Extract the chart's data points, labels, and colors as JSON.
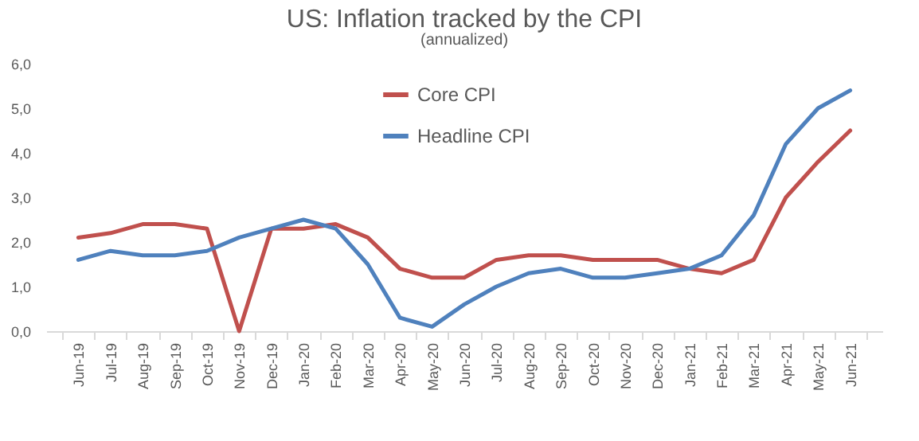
{
  "chart_data": {
    "type": "line",
    "title": "US: Inflation tracked by the CPI",
    "subtitle": "(annualized)",
    "categories": [
      "Jun-19",
      "Jul-19",
      "Aug-19",
      "Sep-19",
      "Oct-19",
      "Nov-19",
      "Dec-19",
      "Jan-20",
      "Feb-20",
      "Mar-20",
      "Apr-20",
      "May-20",
      "Jun-20",
      "Jul-20",
      "Aug-20",
      "Sep-20",
      "Oct-20",
      "Nov-20",
      "Dec-20",
      "Jan-21",
      "Feb-21",
      "Mar-21",
      "Apr-21",
      "May-21",
      "Jun-21"
    ],
    "series": [
      {
        "name": "Core CPI",
        "color": "#c0504d",
        "values": [
          2.1,
          2.2,
          2.4,
          2.4,
          2.3,
          0.0,
          2.3,
          2.3,
          2.4,
          2.1,
          1.4,
          1.2,
          1.2,
          1.6,
          1.7,
          1.7,
          1.6,
          1.6,
          1.6,
          1.4,
          1.3,
          1.6,
          3.0,
          3.8,
          4.5
        ]
      },
      {
        "name": "Headline CPI",
        "color": "#4f81bd",
        "values": [
          1.6,
          1.8,
          1.7,
          1.7,
          1.8,
          2.1,
          2.3,
          2.5,
          2.3,
          1.5,
          0.3,
          0.1,
          0.6,
          1.0,
          1.3,
          1.4,
          1.2,
          1.2,
          1.3,
          1.4,
          1.7,
          2.6,
          4.2,
          5.0,
          5.4
        ]
      }
    ],
    "ylim": [
      0,
      6
    ],
    "yticks": [
      {
        "value": 0,
        "label": "0,0"
      },
      {
        "value": 1,
        "label": "1,0"
      },
      {
        "value": 2,
        "label": "2,0"
      },
      {
        "value": 3,
        "label": "3,0"
      },
      {
        "value": 4,
        "label": "4,0"
      },
      {
        "value": 5,
        "label": "5,0"
      },
      {
        "value": 6,
        "label": "6,0"
      }
    ],
    "grid": false,
    "legend": "top",
    "marker": "none",
    "line_style": "solid"
  }
}
